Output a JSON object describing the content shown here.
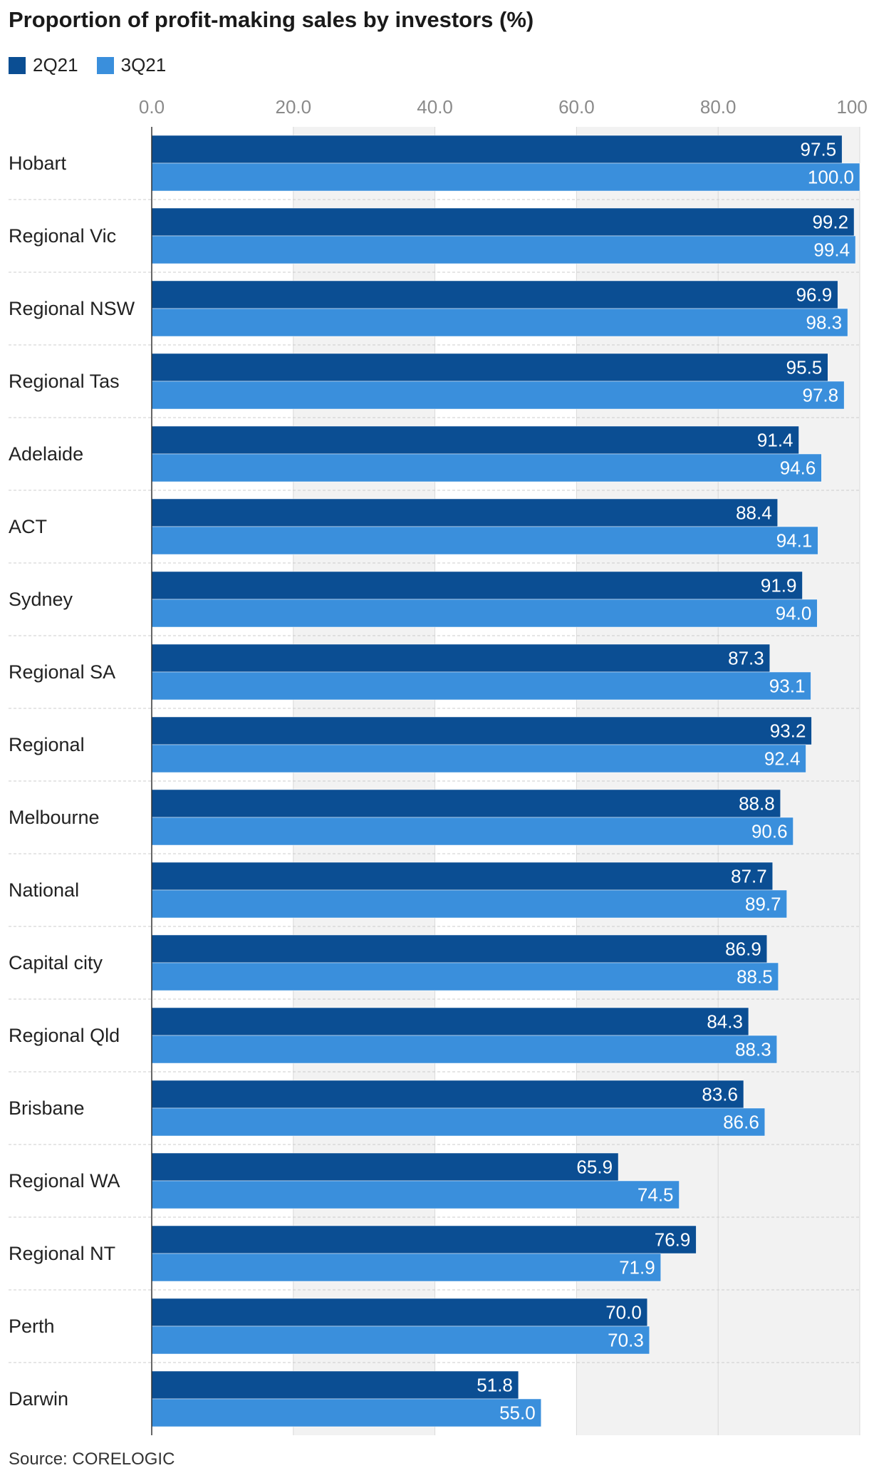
{
  "chart_data": {
    "type": "bar",
    "orientation": "horizontal",
    "title": "Proportion of profit-making sales by investors (%)",
    "xlim": [
      0,
      100
    ],
    "ticks": [
      "0.0",
      "20.0",
      "40.0",
      "60.0",
      "80.0",
      "100.0"
    ],
    "grid": true,
    "legend_position": "top-left",
    "categories": [
      "Hobart",
      "Regional Vic",
      "Regional NSW",
      "Regional Tas",
      "Adelaide",
      "ACT",
      "Sydney",
      "Regional SA",
      "Regional",
      "Melbourne",
      "National",
      "Capital city",
      "Regional Qld",
      "Brisbane",
      "Regional WA",
      "Regional NT",
      "Perth",
      "Darwin"
    ],
    "series": [
      {
        "name": "2Q21",
        "color": "#0b4e93",
        "values": [
          97.5,
          99.2,
          96.9,
          95.5,
          91.4,
          88.4,
          91.9,
          87.3,
          93.2,
          88.8,
          87.7,
          86.9,
          84.3,
          83.6,
          65.9,
          76.9,
          70.0,
          51.8
        ]
      },
      {
        "name": "3Q21",
        "color": "#3a8fdc",
        "values": [
          100.0,
          99.4,
          98.3,
          97.8,
          94.6,
          94.1,
          94.0,
          93.1,
          92.4,
          90.6,
          89.7,
          88.5,
          88.3,
          86.6,
          74.5,
          71.9,
          70.3,
          55.0
        ]
      }
    ]
  },
  "source": "Source: CORELOGIC"
}
